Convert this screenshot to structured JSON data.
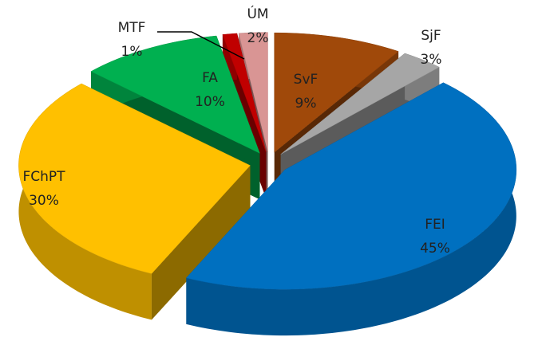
{
  "chart_data": {
    "type": "pie",
    "categories": [
      "SvF",
      "SjF",
      "FEI",
      "FChPT",
      "FA",
      "MTF",
      "ÚM"
    ],
    "values": [
      9,
      3,
      45,
      30,
      10,
      1,
      2
    ],
    "value_labels": [
      "9%",
      "3%",
      "45%",
      "30%",
      "10%",
      "1%",
      "2%"
    ],
    "colors": [
      "#a0490a",
      "#a6a6a6",
      "#0070c0",
      "#ffc000",
      "#00b050",
      "#c00000",
      "#d99594"
    ]
  }
}
